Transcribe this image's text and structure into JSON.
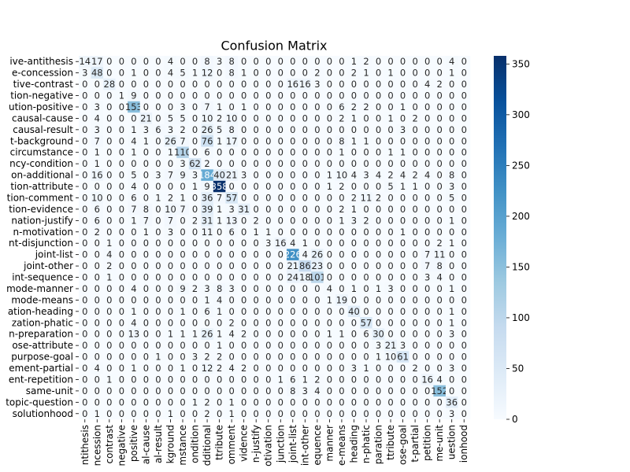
{
  "chart_data": {
    "type": "heatmap",
    "title": "Confusion Matrix",
    "colormap": "Blues",
    "clim": [
      0,
      358
    ],
    "cbar_ticks": [
      0,
      50,
      100,
      150,
      200,
      250,
      300,
      350
    ],
    "y_categories": [
      "ive-antithesis",
      "e-concession",
      "tive-contrast",
      "tion-negative",
      "ution-positive",
      "causal-cause",
      "causal-result",
      "t-background",
      "circumstance",
      "ncy-condition",
      "on-additional",
      "tion-attribute",
      "tion-comment",
      "tion-evidence",
      "nation-justify",
      "n-motivation",
      "nt-disjunction",
      "joint-list",
      "joint-other",
      "int-sequence",
      "mode-manner",
      "mode-means",
      "ation-heading",
      "zation-phatic",
      "n-preparation",
      "ose-attribute",
      "purpose-goal",
      "ement-partial",
      "ent-repetition",
      "same-unit",
      "topic-question",
      "solutionhood"
    ],
    "x_categories": [
      "ntithesis",
      "ncession",
      "contrast",
      "negative",
      "positive",
      "al-cause",
      "al-result",
      "kground",
      "mstance",
      "ondition",
      "dditional",
      "ttribute",
      "omment",
      "vidence",
      "n-justify",
      "otivation",
      "junction",
      "joint-list",
      "int-other",
      "equence",
      "manner",
      "e-means",
      "heading",
      "n-phatic",
      "paration",
      "ttribute",
      "ose-goal",
      "t-partial",
      "petition",
      "me-unit",
      "uestion",
      "ionhood"
    ],
    "values": [
      [
        14,
        17,
        0,
        0,
        0,
        0,
        0,
        4,
        0,
        0,
        8,
        3,
        8,
        0,
        0,
        0,
        0,
        0,
        0,
        0,
        0,
        0,
        1,
        2,
        0,
        0,
        0,
        0,
        0,
        0,
        4,
        0
      ],
      [
        3,
        48,
        0,
        0,
        1,
        0,
        0,
        4,
        5,
        1,
        12,
        0,
        8,
        1,
        0,
        0,
        0,
        0,
        0,
        2,
        0,
        0,
        2,
        1,
        0,
        1,
        0,
        0,
        0,
        0,
        1,
        0
      ],
      [
        0,
        0,
        28,
        0,
        0,
        0,
        0,
        0,
        0,
        0,
        0,
        0,
        0,
        0,
        0,
        0,
        0,
        16,
        16,
        3,
        0,
        0,
        0,
        0,
        0,
        0,
        0,
        0,
        4,
        2,
        0,
        0
      ],
      [
        0,
        0,
        0,
        1,
        9,
        0,
        0,
        0,
        0,
        0,
        0,
        0,
        0,
        0,
        0,
        0,
        0,
        0,
        0,
        0,
        0,
        0,
        0,
        0,
        0,
        0,
        0,
        0,
        0,
        0,
        0,
        0
      ],
      [
        0,
        3,
        0,
        0,
        153,
        0,
        0,
        0,
        3,
        0,
        7,
        1,
        0,
        1,
        0,
        0,
        0,
        0,
        0,
        0,
        0,
        6,
        2,
        2,
        0,
        0,
        1,
        0,
        0,
        0,
        0,
        0
      ],
      [
        0,
        4,
        0,
        0,
        0,
        21,
        0,
        5,
        5,
        0,
        10,
        2,
        10,
        0,
        0,
        0,
        0,
        0,
        0,
        0,
        0,
        2,
        1,
        0,
        0,
        1,
        0,
        2,
        0,
        0,
        0,
        0
      ],
      [
        0,
        3,
        0,
        0,
        1,
        3,
        6,
        3,
        2,
        0,
        26,
        5,
        8,
        0,
        0,
        0,
        0,
        0,
        0,
        0,
        0,
        0,
        0,
        0,
        0,
        0,
        3,
        0,
        0,
        0,
        0,
        0
      ],
      [
        0,
        7,
        0,
        0,
        4,
        1,
        0,
        26,
        7,
        0,
        76,
        1,
        17,
        0,
        0,
        0,
        0,
        0,
        0,
        0,
        0,
        8,
        1,
        1,
        0,
        0,
        0,
        0,
        0,
        0,
        0,
        0
      ],
      [
        0,
        1,
        0,
        0,
        1,
        0,
        0,
        1,
        110,
        0,
        6,
        0,
        0,
        0,
        0,
        0,
        0,
        0,
        0,
        0,
        0,
        1,
        0,
        0,
        0,
        1,
        1,
        0,
        0,
        0,
        0,
        0
      ],
      [
        0,
        1,
        0,
        0,
        0,
        0,
        0,
        0,
        3,
        62,
        2,
        0,
        0,
        0,
        0,
        0,
        0,
        0,
        0,
        0,
        0,
        0,
        0,
        0,
        0,
        0,
        0,
        0,
        0,
        0,
        0,
        0
      ],
      [
        0,
        16,
        0,
        0,
        5,
        0,
        3,
        7,
        9,
        3,
        184,
        40,
        21,
        3,
        0,
        0,
        0,
        0,
        0,
        0,
        1,
        10,
        4,
        3,
        4,
        2,
        4,
        2,
        4,
        0,
        8,
        0
      ],
      [
        0,
        0,
        0,
        0,
        4,
        0,
        0,
        0,
        0,
        1,
        9,
        358,
        0,
        0,
        0,
        0,
        0,
        0,
        0,
        0,
        1,
        2,
        0,
        0,
        0,
        5,
        1,
        1,
        0,
        0,
        3,
        0
      ],
      [
        0,
        10,
        0,
        0,
        6,
        0,
        1,
        2,
        1,
        0,
        36,
        7,
        57,
        0,
        0,
        0,
        0,
        0,
        0,
        0,
        0,
        0,
        2,
        11,
        2,
        0,
        0,
        0,
        0,
        0,
        5,
        0
      ],
      [
        0,
        6,
        0,
        0,
        7,
        8,
        0,
        10,
        7,
        0,
        39,
        1,
        3,
        31,
        0,
        0,
        0,
        0,
        0,
        0,
        0,
        2,
        1,
        0,
        0,
        0,
        0,
        0,
        0,
        0,
        0,
        0
      ],
      [
        0,
        6,
        0,
        0,
        1,
        7,
        0,
        7,
        0,
        2,
        31,
        1,
        13,
        0,
        2,
        0,
        0,
        0,
        0,
        0,
        0,
        1,
        3,
        2,
        0,
        0,
        0,
        0,
        0,
        0,
        1,
        0
      ],
      [
        0,
        2,
        0,
        0,
        0,
        1,
        0,
        3,
        0,
        0,
        11,
        0,
        6,
        0,
        1,
        1,
        0,
        0,
        0,
        0,
        0,
        0,
        0,
        0,
        0,
        0,
        1,
        0,
        0,
        0,
        0,
        0
      ],
      [
        0,
        0,
        1,
        0,
        0,
        0,
        0,
        0,
        0,
        0,
        0,
        0,
        0,
        0,
        0,
        3,
        16,
        4,
        1,
        0,
        0,
        0,
        0,
        0,
        0,
        0,
        0,
        0,
        0,
        2,
        1,
        0
      ],
      [
        0,
        0,
        4,
        0,
        0,
        0,
        0,
        0,
        0,
        0,
        0,
        0,
        0,
        0,
        0,
        0,
        0,
        226,
        4,
        26,
        0,
        0,
        0,
        0,
        0,
        0,
        0,
        0,
        7,
        11,
        0,
        0
      ],
      [
        0,
        0,
        2,
        0,
        0,
        0,
        0,
        0,
        0,
        0,
        0,
        0,
        0,
        0,
        0,
        0,
        0,
        21,
        86,
        23,
        0,
        0,
        0,
        0,
        0,
        0,
        0,
        0,
        7,
        8,
        0,
        0
      ],
      [
        0,
        0,
        1,
        0,
        0,
        0,
        0,
        0,
        0,
        0,
        0,
        0,
        0,
        0,
        0,
        0,
        0,
        24,
        18,
        101,
        0,
        0,
        0,
        0,
        0,
        0,
        0,
        0,
        3,
        4,
        0,
        0
      ],
      [
        0,
        0,
        0,
        0,
        4,
        0,
        0,
        0,
        9,
        2,
        3,
        8,
        3,
        0,
        0,
        0,
        0,
        0,
        0,
        0,
        4,
        0,
        1,
        0,
        1,
        3,
        0,
        0,
        0,
        0,
        1,
        0
      ],
      [
        0,
        0,
        0,
        0,
        0,
        0,
        0,
        0,
        0,
        0,
        1,
        4,
        0,
        0,
        0,
        0,
        0,
        0,
        0,
        0,
        1,
        19,
        0,
        0,
        0,
        0,
        0,
        0,
        0,
        0,
        0,
        0
      ],
      [
        0,
        0,
        0,
        0,
        1,
        0,
        0,
        0,
        1,
        0,
        6,
        1,
        0,
        0,
        0,
        0,
        0,
        0,
        0,
        0,
        0,
        0,
        40,
        0,
        0,
        0,
        0,
        0,
        0,
        0,
        1,
        0
      ],
      [
        0,
        0,
        0,
        0,
        4,
        0,
        0,
        0,
        0,
        0,
        0,
        0,
        2,
        0,
        0,
        0,
        0,
        0,
        0,
        0,
        0,
        0,
        0,
        57,
        0,
        0,
        0,
        0,
        0,
        0,
        1,
        0
      ],
      [
        0,
        0,
        0,
        0,
        13,
        0,
        0,
        1,
        1,
        1,
        26,
        1,
        4,
        2,
        0,
        0,
        0,
        0,
        0,
        0,
        1,
        1,
        0,
        6,
        30,
        0,
        0,
        0,
        0,
        0,
        3,
        0
      ],
      [
        0,
        0,
        0,
        0,
        0,
        0,
        0,
        0,
        0,
        0,
        0,
        1,
        0,
        0,
        0,
        0,
        0,
        0,
        0,
        0,
        0,
        0,
        0,
        0,
        3,
        21,
        3,
        0,
        0,
        0,
        0,
        0
      ],
      [
        0,
        0,
        0,
        0,
        0,
        0,
        1,
        0,
        0,
        3,
        2,
        2,
        0,
        0,
        0,
        0,
        0,
        0,
        0,
        0,
        0,
        0,
        0,
        0,
        1,
        10,
        61,
        0,
        0,
        0,
        0,
        0
      ],
      [
        0,
        4,
        0,
        0,
        1,
        0,
        0,
        0,
        1,
        0,
        12,
        2,
        4,
        2,
        0,
        0,
        0,
        0,
        0,
        0,
        0,
        0,
        3,
        1,
        0,
        0,
        0,
        2,
        0,
        0,
        3,
        0
      ],
      [
        0,
        0,
        1,
        0,
        0,
        0,
        0,
        0,
        0,
        0,
        0,
        0,
        0,
        0,
        0,
        0,
        1,
        6,
        1,
        2,
        0,
        0,
        0,
        0,
        0,
        0,
        0,
        0,
        16,
        4,
        0,
        0
      ],
      [
        0,
        0,
        0,
        0,
        0,
        0,
        0,
        0,
        0,
        0,
        0,
        0,
        0,
        0,
        0,
        0,
        0,
        8,
        3,
        4,
        0,
        0,
        0,
        0,
        0,
        0,
        0,
        0,
        0,
        152,
        0,
        0
      ],
      [
        0,
        0,
        0,
        0,
        0,
        0,
        0,
        0,
        0,
        1,
        2,
        0,
        1,
        0,
        0,
        0,
        0,
        0,
        0,
        0,
        0,
        0,
        0,
        0,
        0,
        0,
        0,
        0,
        0,
        0,
        36,
        0
      ],
      [
        0,
        1,
        0,
        0,
        0,
        0,
        0,
        1,
        0,
        0,
        2,
        0,
        1,
        0,
        0,
        0,
        0,
        0,
        0,
        0,
        0,
        0,
        0,
        0,
        0,
        0,
        0,
        0,
        0,
        0,
        3,
        0
      ]
    ]
  }
}
